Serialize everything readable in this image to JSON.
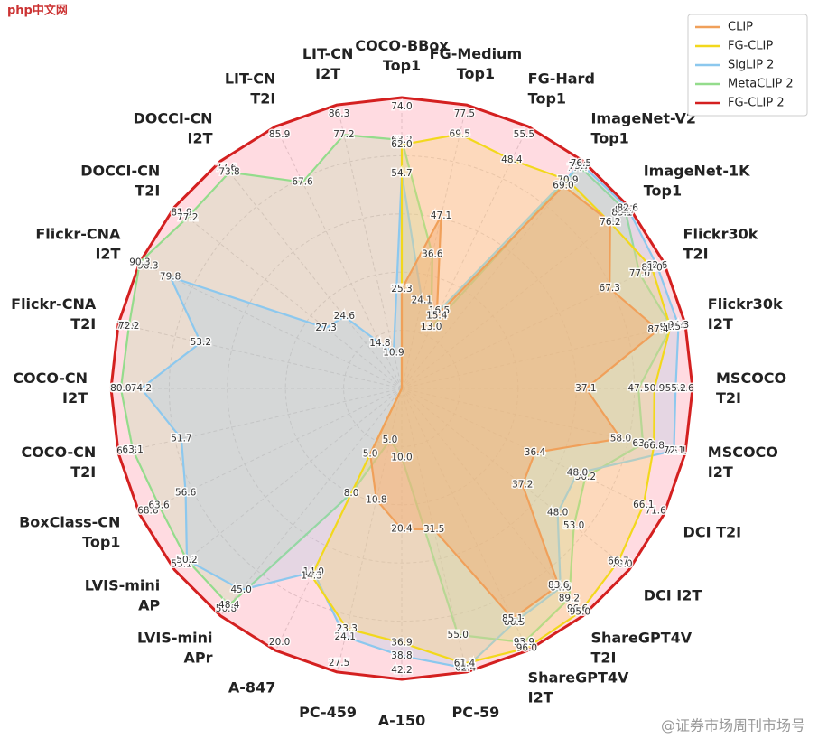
{
  "chart_data": {
    "type": "radar",
    "categories": [
      [
        "COCO-BBox",
        "Top1"
      ],
      [
        "FG-Medium",
        "Top1"
      ],
      [
        "FG-Hard",
        "Top1"
      ],
      [
        "ImageNet-V2",
        "Top1"
      ],
      [
        "ImageNet-1K",
        "Top1"
      ],
      [
        "Flickr30k",
        "T2I"
      ],
      [
        "Flickr30k",
        "I2T"
      ],
      [
        "MSCOCO",
        "T2I"
      ],
      [
        "MSCOCO",
        "I2T"
      ],
      [
        "DCI  T2I"
      ],
      [
        "DCI  I2T"
      ],
      [
        "ShareGPT4V",
        "T2I"
      ],
      [
        "ShareGPT4V",
        "I2T"
      ],
      [
        "PC-59"
      ],
      [
        "A-150"
      ],
      [
        "PC-459"
      ],
      [
        "A-847"
      ],
      [
        "LVIS-mini",
        "APr"
      ],
      [
        "LVIS-mini",
        "AP"
      ],
      [
        "BoxClass-CN",
        "Top1"
      ],
      [
        "COCO-CN",
        "T2I"
      ],
      [
        "COCO-CN",
        "I2T"
      ],
      [
        "Flickr-CNA",
        "T2I"
      ],
      [
        "Flickr-CNA",
        "I2T"
      ],
      [
        "DOCCI-CN",
        "T2I"
      ],
      [
        "DOCCI-CN",
        "I2T"
      ],
      [
        "LIT-CN",
        "T2I"
      ],
      [
        "LIT-CN",
        "I2T"
      ]
    ],
    "series": [
      {
        "name": "CLIP",
        "color": "#f0a05a",
        "fill": "rgba(245,170,110,0.45)",
        "values": [
          25.3,
          47.1,
          15.4,
          69.0,
          76.2,
          67.3,
          87.4,
          37.1,
          58.0,
          36.4,
          37.2,
          83.6,
          85.1,
          31.5,
          20.4,
          10.8,
          5.0,
          null,
          null,
          null,
          null,
          null,
          null,
          null,
          null,
          null,
          null,
          null
        ],
        "value_labels": [
          "25.3",
          "47.1",
          "15.4",
          "69.0",
          "76.2",
          "67.3",
          "87.4",
          "37.1",
          "58.0",
          "36.4",
          "37.2",
          "83.6",
          "85.1",
          "31.5",
          "20.4",
          "10.8",
          "5.0",
          null,
          null,
          null,
          null,
          null,
          null,
          null,
          null,
          null,
          null,
          null
        ]
      },
      {
        "name": "FG-CLIP",
        "color": "#f2d81c",
        "fill": "rgba(250,215,120,0.35)",
        "values": [
          62.0,
          69.5,
          48.4,
          70.9,
          76.1,
          81.0,
          91.5,
          50.9,
          66.8,
          66.1,
          66.7,
          95.0,
          96.0,
          61.4,
          36.9,
          23.3,
          14.3,
          null,
          null,
          null,
          null,
          null,
          null,
          null,
          null,
          null,
          null,
          null
        ],
        "value_labels": [
          "62.0",
          "69.5",
          "48.4",
          "70.9",
          "76.1",
          "81.0",
          "91.5",
          "50.9",
          "66.8",
          "66.1",
          "66.7",
          "95.0",
          "96.0",
          "61.4",
          "36.9",
          "23.3",
          "14.3",
          null,
          null,
          null,
          null,
          null,
          null,
          null,
          null,
          null,
          null,
          null
        ]
      },
      {
        "name": "SigLIP 2",
        "color": "#8cc8ee",
        "fill": "rgba(150,200,235,0.25)",
        "values": [
          54.7,
          24.1,
          16.5,
          76.5,
          82.6,
          82.6,
          94.3,
          55.2,
          72.1,
          48.0,
          48.0,
          84.6,
          86.5,
          62.4,
          38.8,
          24.1,
          14.0,
          45.0,
          50.2,
          56.6,
          51.7,
          74.2,
          53.2,
          79.8,
          27.3,
          24.6,
          14.8,
          10.9
        ],
        "value_labels": [
          "54.7",
          "24.1",
          "16.5",
          "76.5",
          "82.6",
          "82.6",
          "94.3",
          "55.2",
          "72.1",
          "48.0",
          "48.0",
          "84.6",
          "86.5",
          "62.4",
          "38.8",
          "24.1",
          "14.0",
          "45.0",
          "50.2",
          "56.6",
          "51.7",
          "74.2",
          "53.2",
          "79.8",
          "27.3",
          "24.6",
          "14.8",
          "10.9"
        ]
      },
      {
        "name": "MetaCLIP 2",
        "color": "#94dc8c",
        "fill": "rgba(170,225,160,0.25)",
        "values": [
          63.2,
          36.6,
          13.0,
          75.7,
          81.7,
          77.0,
          91.9,
          47.7,
          63.9,
          50.2,
          53.0,
          89.2,
          93.9,
          55.0,
          10.0,
          5.0,
          8.0,
          48.4,
          50.2,
          63.6,
          63.1,
          80.0,
          72.2,
          90.3,
          77.2,
          73.8,
          67.6,
          77.2
        ],
        "value_labels": [
          "63.2",
          "36.6",
          "13.0",
          "75.7",
          "81.7",
          "77.0",
          "91.9",
          "47.7",
          "63.9",
          "50.2",
          "53.0",
          "89.2",
          "93.9",
          "55.0",
          "10.0",
          "5.0",
          "8.0",
          "48.4",
          "50.2",
          "63.6",
          "63.1",
          "80.0",
          "72.2",
          "90.3",
          "77.2",
          "73.8",
          "67.6",
          "77.2"
        ]
      },
      {
        "name": "FG-CLIP 2",
        "color": "#d42020",
        "fill": "rgba(255,190,200,0.55)",
        "values": [
          74.0,
          77.5,
          55.5,
          77.4,
          83.1,
          84.8,
          96.6,
          58.6,
          75.1,
          71.6,
          70.0,
          96.6,
          96.9,
          63.3,
          42.2,
          27.5,
          20.0,
          50.8,
          53.1,
          68.6,
          66.5,
          82.8,
          75.0,
          90.3,
          81.9,
          77.6,
          85.9,
          86.3
        ],
        "value_labels": [
          "74.0",
          "77.5",
          "55.5",
          "77.4",
          "83.1",
          "84.8",
          "96.6",
          "58.6",
          "75.1",
          "71.6",
          "70.0",
          "96.6",
          "96.9",
          "63.3",
          "42.2",
          "27.5",
          "20.0",
          "50.8",
          "53.1",
          "68.6",
          "66.5",
          "82.8",
          "75.0",
          "90.3",
          "81.9",
          "77.6",
          "85.9",
          "86.3"
        ]
      }
    ],
    "grid": true,
    "legend": "upper right"
  },
  "watermarks": [
    "php中文网",
    "@证券市场周刊市场号"
  ]
}
